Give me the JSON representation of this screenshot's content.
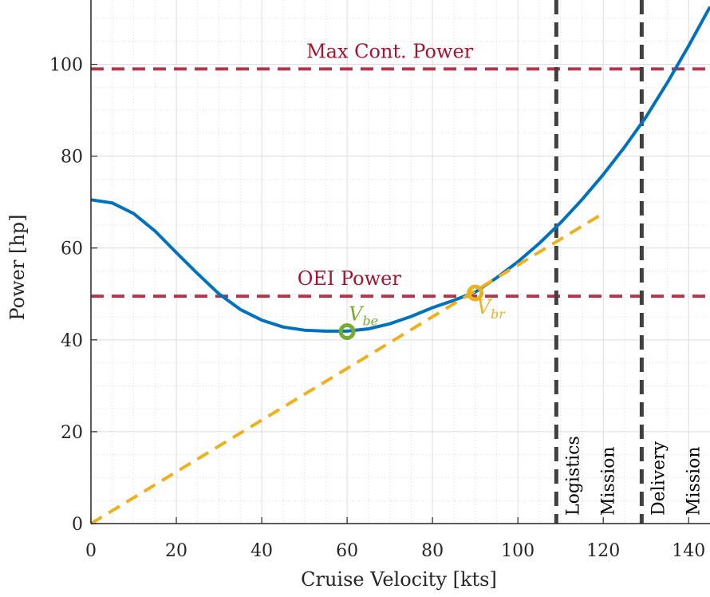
{
  "chart_data": {
    "type": "line",
    "title": "",
    "xlabel": "Cruise Velocity [kts]",
    "ylabel": "Power [hp]",
    "xlim": [
      0,
      145
    ],
    "ylim": [
      0,
      114
    ],
    "xticks": [
      0,
      20,
      40,
      60,
      80,
      100,
      120,
      140
    ],
    "yticks": [
      0,
      20,
      40,
      60,
      80,
      100
    ],
    "grid": true,
    "minor_grid": true,
    "series": [
      {
        "color": "#0072BD",
        "style": "solid",
        "x": [
          0,
          5,
          10,
          15,
          20,
          25,
          30,
          35,
          40,
          45,
          50,
          55,
          60,
          65,
          70,
          75,
          80,
          85,
          90,
          95,
          100,
          105,
          110,
          115,
          120,
          125,
          130,
          135,
          140,
          145
        ],
        "y": [
          70.5,
          69.8,
          67.5,
          63.7,
          59.0,
          54.4,
          50.0,
          46.6,
          44.3,
          42.8,
          42.1,
          41.9,
          41.9,
          42.4,
          43.5,
          45.1,
          47.0,
          48.6,
          50.4,
          53.5,
          57.0,
          61.0,
          65.5,
          70.5,
          76.0,
          82.0,
          88.5,
          96.0,
          104.0,
          112.5
        ]
      },
      {
        "color": "#EDB120",
        "style": "dashed",
        "x": [
          0,
          119
        ],
        "y": [
          0,
          67.0
        ]
      }
    ],
    "reference_lines": [
      {
        "orientation": "horizontal",
        "value": 99,
        "label": "Max Cont. Power",
        "color": "#A2142F"
      },
      {
        "orientation": "horizontal",
        "value": 49.5,
        "label": "OEI Power",
        "color": "#A2142F"
      },
      {
        "orientation": "vertical",
        "value": 109,
        "label_line1": "Logistics",
        "label_line2": "Mission",
        "color": "#404040"
      },
      {
        "orientation": "vertical",
        "value": 129,
        "label_line1": "Delivery",
        "label_line2": "Mission",
        "color": "#404040"
      }
    ],
    "points": [
      {
        "label": "V",
        "subscript": "be",
        "x": 60,
        "y": 41.8,
        "color": "#77AC30"
      },
      {
        "label": "V",
        "subscript": "br",
        "x": 90,
        "y": 50.2,
        "color": "#EDB120"
      }
    ]
  }
}
